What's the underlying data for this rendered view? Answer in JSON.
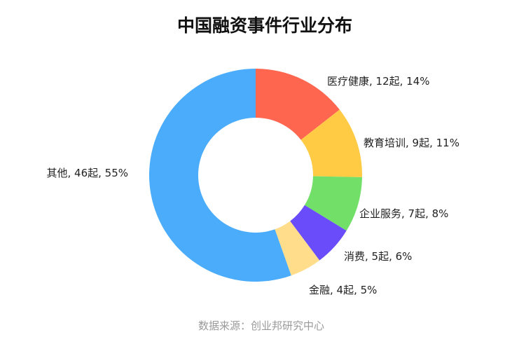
{
  "chart_data": {
    "type": "pie",
    "title": "中国融资事件行业分布",
    "categories": [
      "医疗健康",
      "教育培训",
      "企业服务",
      "消费",
      "金融",
      "其他"
    ],
    "values": [
      12,
      9,
      7,
      5,
      4,
      46
    ],
    "labels": [
      "医疗健康, 12起, 14%",
      "教育培训, 9起, 11%",
      "企业服务, 7起, 8%",
      "消费, 5起, 6%",
      "金融, 4起, 5%",
      "其他, 46起, 55%"
    ],
    "colors": [
      "#fe664f",
      "#ffca44",
      "#72e068",
      "#6b4cfb",
      "#ffdd8a",
      "#4aacfb"
    ],
    "donut": true
  },
  "source": "数据来源：创业邦研究中心"
}
